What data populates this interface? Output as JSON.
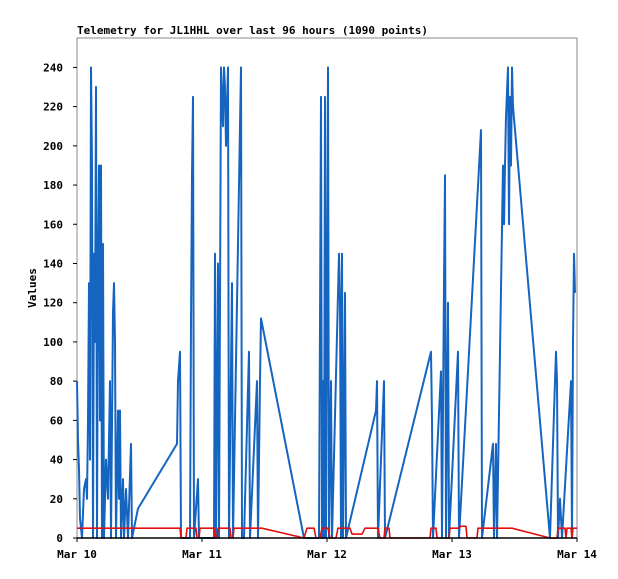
{
  "chart_data": {
    "type": "line",
    "title": "Telemetry for JL1HHL over last 96 hours (1090 points)",
    "y_label": "Values",
    "xlim": [
      10,
      14
    ],
    "xticks": [
      {
        "value": 10,
        "label": "Mar 10"
      },
      {
        "value": 11,
        "label": "Mar 11"
      },
      {
        "value": 12,
        "label": "Mar 12"
      },
      {
        "value": 13,
        "label": "Mar 13"
      },
      {
        "value": 14,
        "label": "Mar 14"
      }
    ],
    "ylim": [
      0,
      255
    ],
    "yticks": [
      0,
      20,
      40,
      60,
      80,
      100,
      120,
      140,
      160,
      180,
      200,
      220,
      240
    ],
    "series": [
      {
        "color": "#1565c0",
        "x": [
          10.0,
          10.008,
          10.016,
          10.024,
          10.04,
          10.056,
          10.072,
          10.08,
          10.088,
          10.096,
          10.104,
          10.112,
          10.12,
          10.128,
          10.136,
          10.144,
          10.152,
          10.16,
          10.168,
          10.176,
          10.184,
          10.192,
          10.2,
          10.208,
          10.216,
          10.232,
          10.248,
          10.264,
          10.272,
          10.288,
          10.296,
          10.304,
          10.312,
          10.328,
          10.336,
          10.344,
          10.352,
          10.368,
          10.376,
          10.392,
          10.408,
          10.432,
          10.44,
          10.488,
          10.8,
          10.808,
          10.824,
          10.832,
          10.904,
          10.912,
          10.92,
          10.928,
          10.936,
          10.968,
          10.976,
          11.096,
          11.104,
          11.112,
          11.128,
          11.136,
          11.152,
          11.168,
          11.176,
          11.184,
          11.192,
          11.208,
          11.216,
          11.24,
          11.248,
          11.312,
          11.32,
          11.336,
          11.376,
          11.384,
          11.44,
          11.448,
          11.464,
          11.472,
          11.816,
          11.936,
          11.944,
          11.952,
          11.96,
          11.968,
          11.976,
          11.984,
          11.992,
          12.008,
          12.016,
          12.032,
          12.04,
          12.096,
          12.104,
          12.112,
          12.12,
          12.128,
          12.144,
          12.152,
          12.392,
          12.4,
          12.408,
          12.456,
          12.464,
          12.832,
          12.84,
          12.848,
          12.912,
          12.92,
          12.936,
          12.944,
          12.952,
          12.968,
          12.976,
          13.048,
          13.056,
          13.232,
          13.24,
          13.328,
          13.336,
          13.352,
          13.36,
          13.408,
          13.416,
          13.424,
          13.432,
          13.448,
          13.456,
          13.464,
          13.472,
          13.48,
          13.488,
          13.784,
          13.824,
          13.832,
          13.84,
          13.848,
          13.864,
          13.88,
          13.952,
          13.96,
          13.968,
          13.976,
          13.984
        ],
        "values": [
          80,
          50,
          35,
          10,
          0,
          25,
          30,
          20,
          60,
          130,
          40,
          240,
          190,
          0,
          145,
          100,
          230,
          0,
          140,
          190,
          60,
          190,
          0,
          150,
          0,
          40,
          20,
          80,
          0,
          115,
          130,
          100,
          0,
          65,
          20,
          65,
          0,
          30,
          0,
          25,
          0,
          48,
          0,
          15,
          48,
          80,
          95,
          0,
          0,
          110,
          185,
          225,
          0,
          30,
          0,
          0,
          145,
          0,
          140,
          0,
          240,
          210,
          240,
          230,
          200,
          240,
          0,
          130,
          0,
          240,
          0,
          0,
          95,
          0,
          80,
          0,
          80,
          112,
          0,
          0,
          110,
          225,
          0,
          80,
          0,
          225,
          0,
          240,
          0,
          80,
          0,
          145,
          120,
          0,
          145,
          0,
          125,
          0,
          65,
          80,
          0,
          80,
          0,
          95,
          60,
          0,
          85,
          0,
          130,
          185,
          0,
          120,
          0,
          95,
          0,
          208,
          0,
          48,
          0,
          48,
          0,
          190,
          160,
          190,
          215,
          240,
          160,
          225,
          190,
          240,
          220,
          0,
          80,
          95,
          80,
          0,
          20,
          0,
          80,
          0,
          100,
          145,
          125
        ]
      },
      {
        "color": "#e01010",
        "x": [
          10.0,
          10.824,
          10.832,
          10.872,
          10.88,
          10.952,
          10.96,
          10.976,
          10.984,
          11.096,
          11.104,
          11.12,
          11.128,
          11.224,
          11.232,
          11.248,
          11.256,
          11.48,
          11.816,
          11.84,
          11.896,
          11.912,
          11.944,
          11.96,
          12.008,
          12.024,
          12.072,
          12.088,
          12.184,
          12.2,
          12.28,
          12.304,
          12.408,
          12.424,
          12.456,
          12.464,
          12.496,
          12.504,
          12.824,
          12.832,
          12.872,
          12.88,
          12.976,
          12.984,
          13.056,
          13.072,
          13.112,
          13.12,
          13.2,
          13.208,
          13.48,
          13.784,
          13.84,
          13.848,
          13.904,
          13.912,
          13.92,
          13.952,
          13.96,
          13.968,
          14.0
        ],
        "values": [
          5,
          5,
          0,
          0,
          5,
          5,
          0,
          0,
          5,
          5,
          0,
          0,
          5,
          5,
          0,
          0,
          5,
          5,
          0,
          5,
          5,
          0,
          0,
          5,
          5,
          0,
          0,
          5,
          5,
          2,
          2,
          5,
          5,
          0,
          0,
          5,
          5,
          0,
          0,
          5,
          5,
          0,
          0,
          5,
          5,
          6,
          6,
          0,
          0,
          5,
          5,
          0,
          0,
          5,
          5,
          0,
          5,
          5,
          0,
          5,
          5
        ]
      }
    ]
  }
}
